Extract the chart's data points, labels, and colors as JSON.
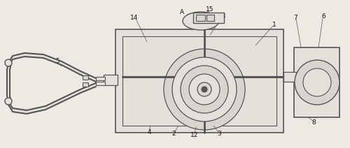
{
  "bg_color": "#ede9e3",
  "line_color": "#555555",
  "fill_light": "#e4e0da",
  "fill_med": "#d8d4ce",
  "label_color": "#111111",
  "fig_width": 5.0,
  "fig_height": 2.12,
  "dpi": 100
}
